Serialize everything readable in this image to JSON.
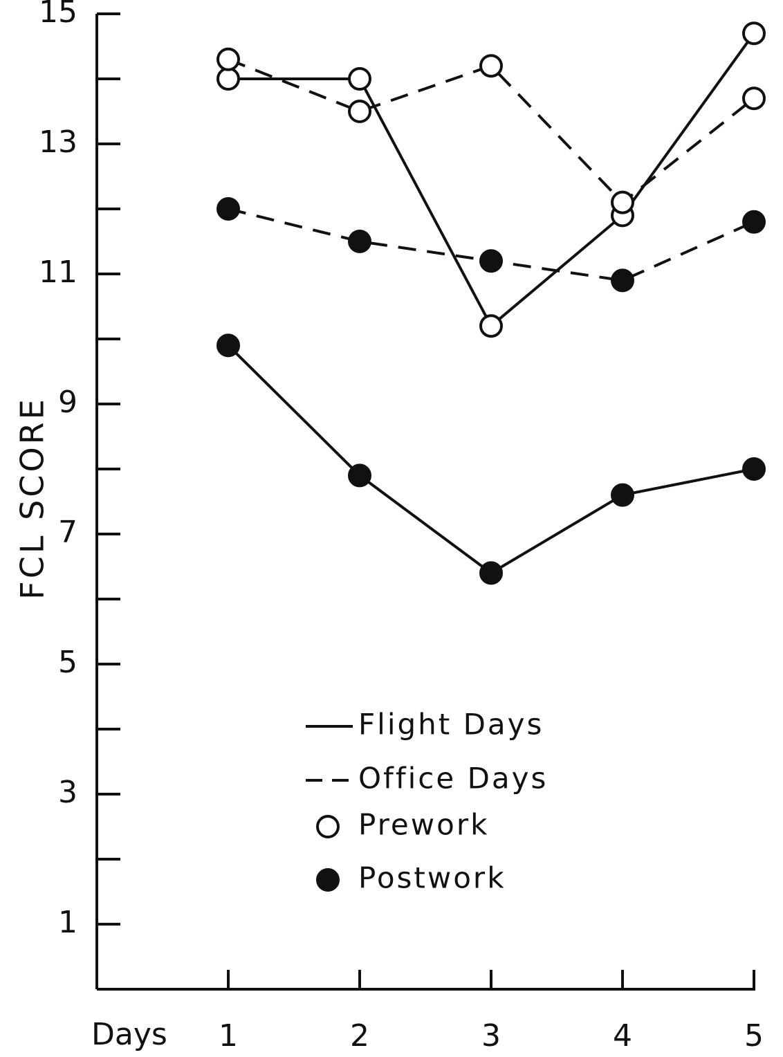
{
  "chart_data": {
    "type": "line",
    "title": "",
    "xlabel": "Days",
    "ylabel": "FCL SCORE",
    "x": [
      1,
      2,
      3,
      4,
      5
    ],
    "xticks": [
      "1",
      "2",
      "3",
      "4",
      "5"
    ],
    "yticks": [
      1,
      3,
      5,
      7,
      9,
      11,
      13,
      15
    ],
    "ytick_labels": [
      "1",
      "3",
      "5",
      "7",
      "9",
      "11",
      "13",
      "15"
    ],
    "ylim": [
      0,
      15
    ],
    "grid": false,
    "legend_position": "lower-center",
    "series": [
      {
        "name": "Flight Days Prework",
        "line": "solid",
        "marker": "open",
        "values": [
          14.0,
          14.0,
          10.2,
          11.9,
          14.7
        ]
      },
      {
        "name": "Office Days Prework",
        "line": "dashed",
        "marker": "open",
        "values": [
          14.3,
          13.5,
          14.2,
          12.1,
          13.7
        ]
      },
      {
        "name": "Office Days Postwork",
        "line": "dashed",
        "marker": "filled",
        "values": [
          12.0,
          11.5,
          11.2,
          10.9,
          11.8
        ]
      },
      {
        "name": "Flight Days Postwork",
        "line": "solid",
        "marker": "filled",
        "values": [
          9.9,
          7.9,
          6.4,
          7.6,
          8.0
        ]
      }
    ],
    "legend": [
      {
        "label": "Flight Days",
        "symbol": "solid-line"
      },
      {
        "label": "Office Days",
        "symbol": "dashed-line"
      },
      {
        "label": "Prework",
        "symbol": "open-circle"
      },
      {
        "label": "Postwork",
        "symbol": "filled-circle"
      }
    ]
  }
}
